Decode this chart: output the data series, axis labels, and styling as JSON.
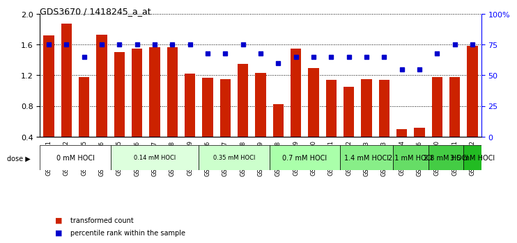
{
  "title": "GDS3670 / 1418245_a_at",
  "samples": [
    "GSM387601",
    "GSM387602",
    "GSM387605",
    "GSM387606",
    "GSM387645",
    "GSM387646",
    "GSM387647",
    "GSM387648",
    "GSM387649",
    "GSM387676",
    "GSM387677",
    "GSM387678",
    "GSM387679",
    "GSM387698",
    "GSM387699",
    "GSM387700",
    "GSM387701",
    "GSM387702",
    "GSM387703",
    "GSM387713",
    "GSM387714",
    "GSM387716",
    "GSM387750",
    "GSM387751",
    "GSM387752"
  ],
  "bar_values": [
    1.72,
    1.87,
    1.18,
    1.73,
    1.5,
    1.55,
    1.57,
    1.57,
    1.22,
    1.17,
    1.15,
    1.35,
    1.23,
    0.82,
    1.55,
    1.29,
    1.14,
    1.05,
    1.15,
    1.14,
    0.5,
    0.52,
    1.18,
    1.18,
    1.58
  ],
  "percentile_values": [
    75,
    75,
    65,
    75,
    75,
    75,
    75,
    75,
    75,
    68,
    68,
    75,
    68,
    60,
    65,
    65,
    65,
    65,
    65,
    65,
    55,
    55,
    68,
    75,
    75
  ],
  "dose_groups": [
    {
      "label": "0 mM HOCl",
      "start": 0,
      "end": 4,
      "color": "#ffffff"
    },
    {
      "label": "0.14 mM HOCl",
      "start": 4,
      "end": 9,
      "color": "#ccffcc"
    },
    {
      "label": "0.35 mM HOCl",
      "start": 9,
      "end": 13,
      "color": "#99ff99"
    },
    {
      "label": "0.7 mM HOCl",
      "start": 13,
      "end": 17,
      "color": "#66ff66"
    },
    {
      "label": "1.4 mM HOCl",
      "start": 17,
      "end": 20,
      "color": "#44ee44"
    },
    {
      "label": "2.1 mM HOCl",
      "start": 20,
      "end": 22,
      "color": "#33dd33"
    },
    {
      "label": "2.8 mM HOCl",
      "start": 22,
      "end": 24,
      "color": "#22cc22"
    },
    {
      "label": "3.5 mM HOCl",
      "start": 24,
      "end": 25,
      "color": "#11bb11"
    }
  ],
  "bar_color": "#cc2200",
  "dot_color": "#0000cc",
  "ylim_left": [
    0.4,
    2.0
  ],
  "ylim_right": [
    0,
    100
  ],
  "yticks_left": [
    0.4,
    0.8,
    1.2,
    1.6,
    2.0
  ],
  "yticks_right": [
    0,
    25,
    50,
    75,
    100
  ],
  "ytick_labels_right": [
    "0",
    "25",
    "50",
    "75",
    "100%"
  ]
}
